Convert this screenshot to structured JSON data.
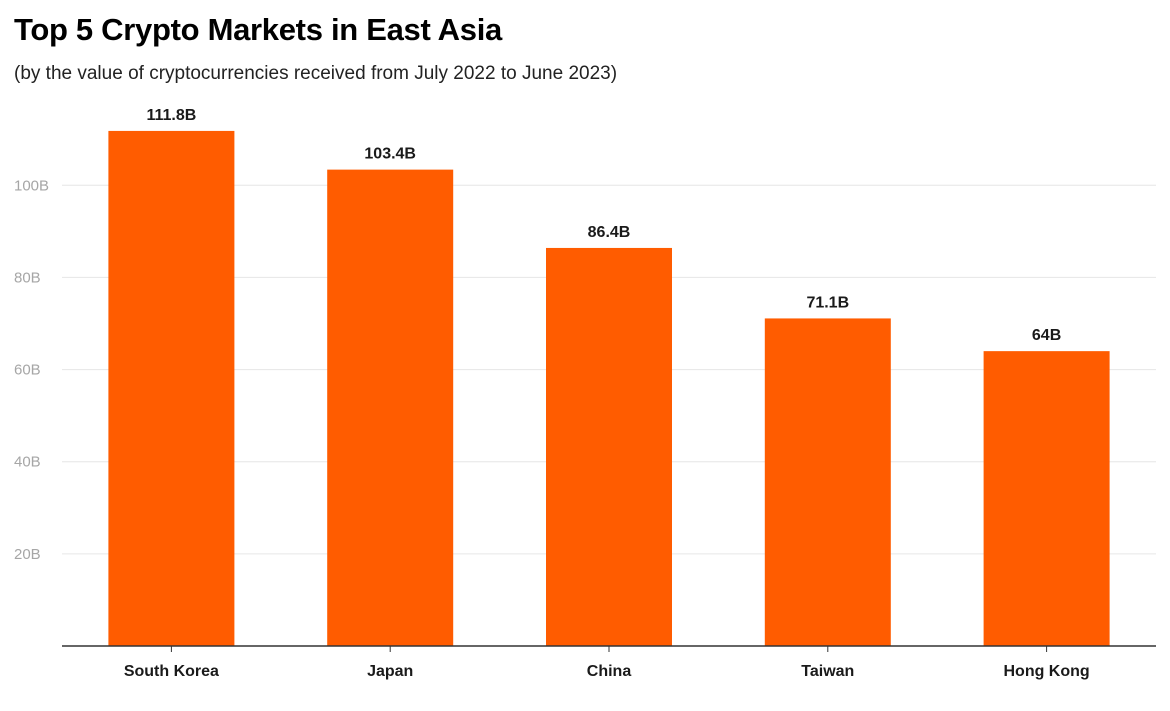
{
  "chart_data": {
    "type": "bar",
    "title": "Top 5 Crypto Markets in East Asia",
    "subtitle": "(by the value of cryptocurrencies received from July 2022 to June 2023)",
    "xlabel": "",
    "ylabel": "",
    "categories": [
      "South Korea",
      "Japan",
      "China",
      "Taiwan",
      "Hong Kong"
    ],
    "values": [
      111.8,
      103.4,
      86.4,
      71.1,
      64
    ],
    "data_labels": [
      "111.8B",
      "103.4B",
      "86.4B",
      "71.1B",
      "64B"
    ],
    "ylim": [
      0,
      112
    ],
    "yticks": [
      20,
      40,
      60,
      80,
      100
    ],
    "ytick_labels": [
      "20B",
      "40B",
      "60B",
      "80B",
      "100B"
    ],
    "grid": true,
    "legend": "none",
    "colors": {
      "bar": "#ff5c00",
      "grid": "#e6e6e6",
      "axis": "#333333"
    }
  }
}
